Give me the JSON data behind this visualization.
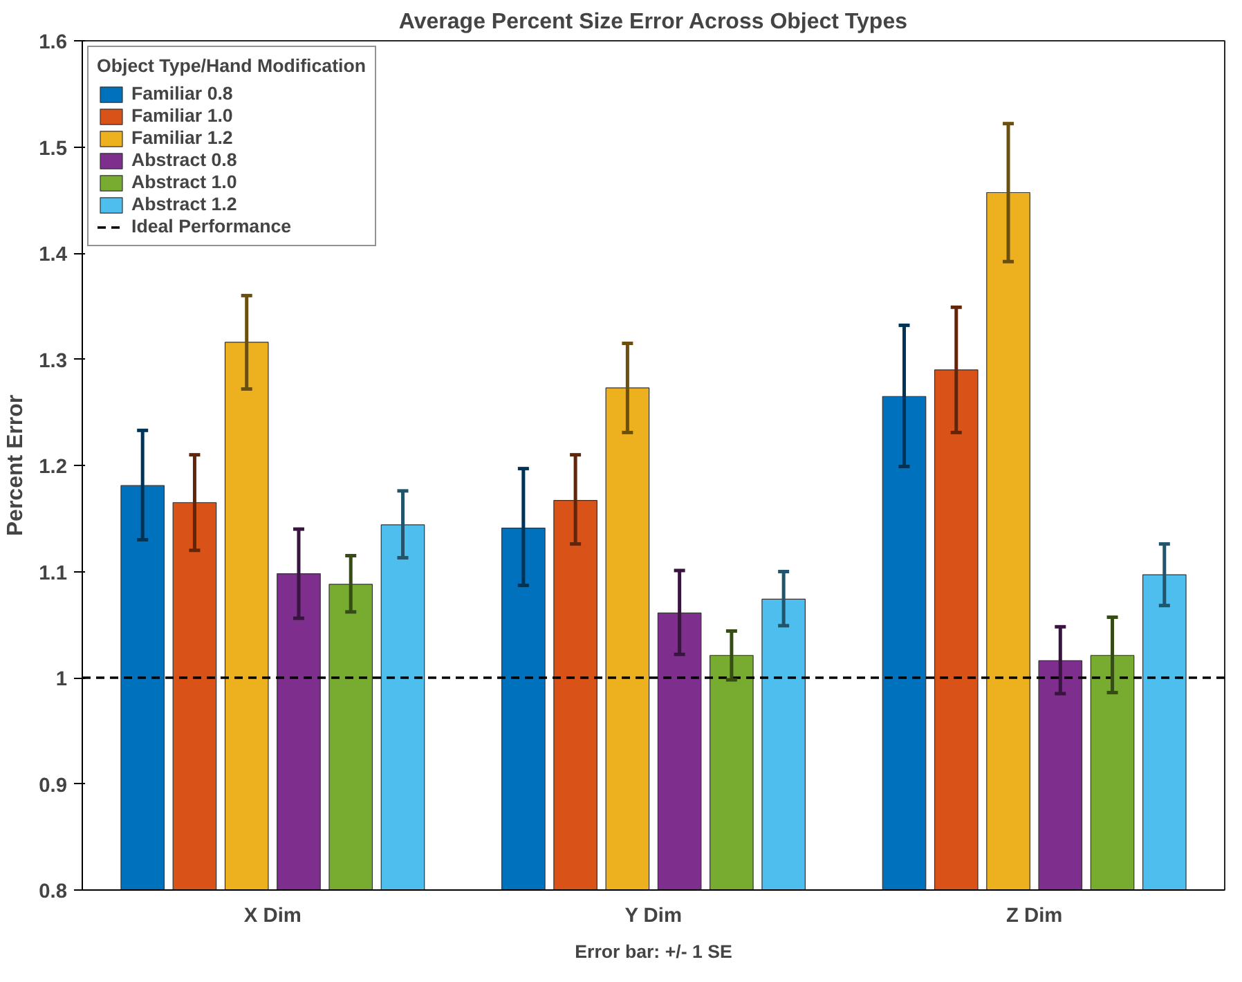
{
  "chart_data": {
    "type": "bar",
    "title": "Average Percent Size Error Across Object Types",
    "ylabel": "Percent Error",
    "categories": [
      "X Dim",
      "Y Dim",
      "Z Dim"
    ],
    "series": [
      {
        "name": "Familiar 0.8",
        "color": "#0072bd",
        "values": [
          1.181,
          1.141,
          1.265
        ],
        "errors": [
          [
            1.13,
            1.233
          ],
          [
            1.087,
            1.197
          ],
          [
            1.199,
            1.332
          ]
        ]
      },
      {
        "name": "Familiar 1.0",
        "color": "#d95319",
        "values": [
          1.165,
          1.167,
          1.29
        ],
        "errors": [
          [
            1.12,
            1.21
          ],
          [
            1.126,
            1.21
          ],
          [
            1.231,
            1.349
          ]
        ]
      },
      {
        "name": "Familiar 1.2",
        "color": "#edb120",
        "values": [
          1.316,
          1.273,
          1.457
        ],
        "errors": [
          [
            1.272,
            1.36
          ],
          [
            1.231,
            1.315
          ],
          [
            1.392,
            1.522
          ]
        ]
      },
      {
        "name": "Abstract 0.8",
        "color": "#7e2f8e",
        "values": [
          1.098,
          1.061,
          1.016
        ],
        "errors": [
          [
            1.056,
            1.14
          ],
          [
            1.022,
            1.101
          ],
          [
            0.985,
            1.048
          ]
        ]
      },
      {
        "name": "Abstract 1.0",
        "color": "#77ac30",
        "values": [
          1.088,
          1.021,
          1.021
        ],
        "errors": [
          [
            1.062,
            1.115
          ],
          [
            0.998,
            1.044
          ],
          [
            0.986,
            1.057
          ]
        ]
      },
      {
        "name": "Abstract 1.2",
        "color": "#4dbeee",
        "values": [
          1.144,
          1.074,
          1.097
        ],
        "errors": [
          [
            1.113,
            1.176
          ],
          [
            1.049,
            1.1
          ],
          [
            1.068,
            1.126
          ]
        ]
      }
    ],
    "ylim": [
      0.8,
      1.6
    ],
    "yticks": [
      0.8,
      0.9,
      1,
      1.1,
      1.2,
      1.3,
      1.4,
      1.5,
      1.6
    ],
    "ref_lines": [
      {
        "axis": "y",
        "value": 1,
        "label": "Ideal Performance",
        "color": "#000000",
        "line_style": "dashed"
      }
    ],
    "legend_title": "Object Type/Hand Modification",
    "legend": "top left",
    "grid": false,
    "annotations": [
      "Error bar: +/- 1 SE"
    ]
  }
}
